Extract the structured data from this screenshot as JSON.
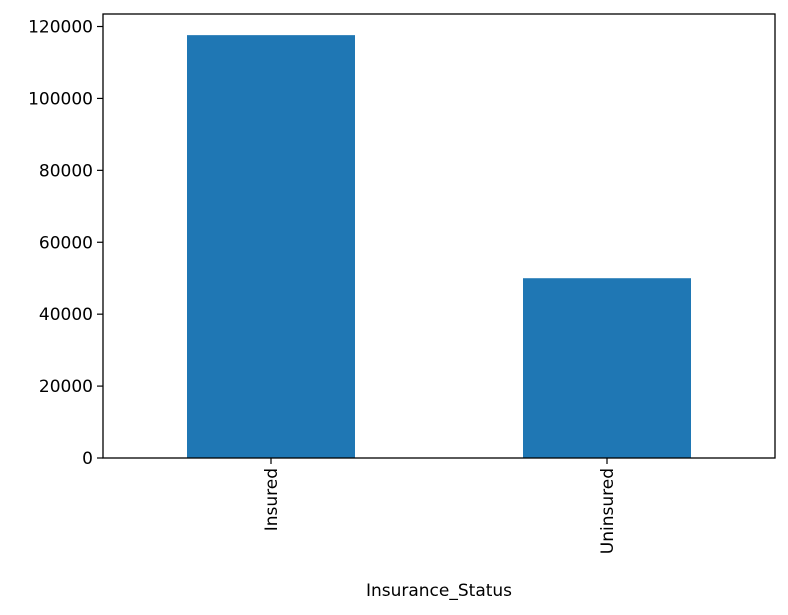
{
  "chart_data": {
    "type": "bar",
    "title": "",
    "xlabel": "Insurance_Status",
    "ylabel": "",
    "categories": [
      "Insured",
      "Uninsured"
    ],
    "values": [
      117600,
      50000
    ],
    "ylim": [
      0,
      123480
    ],
    "yticks": [
      0,
      20000,
      40000,
      60000,
      80000,
      100000,
      120000
    ],
    "ytick_labels": [
      "0",
      "20000",
      "40000",
      "60000",
      "80000",
      "100000",
      "120000"
    ],
    "grid": false,
    "legend": "none",
    "bar_color": "#1f77b4"
  }
}
